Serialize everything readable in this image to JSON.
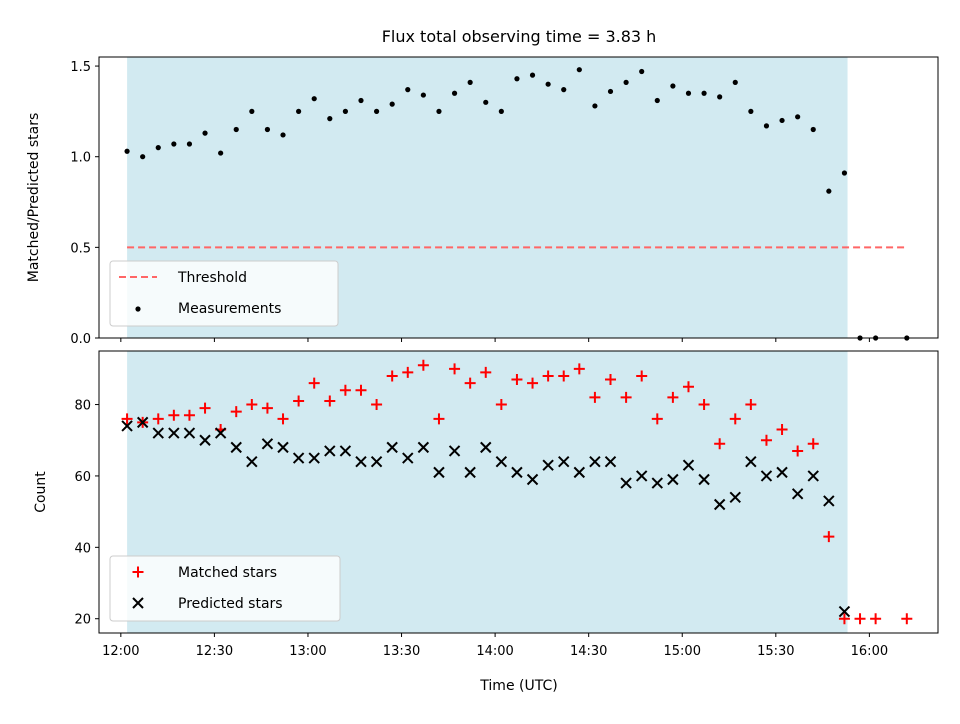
{
  "title": "Flux total observing time = 3.83 h",
  "colors": {
    "shade": "#add8e6",
    "threshold": "#ff6666",
    "measurements": "#000000",
    "matched": "#ff0000",
    "predicted": "#000000"
  },
  "chart_data": [
    {
      "type": "scatter",
      "ylabel": "Matched/Predicted stars",
      "xlabel": "",
      "ylim": [
        0.0,
        1.55
      ],
      "yticks": [
        0.0,
        0.5,
        1.0,
        1.5
      ],
      "ytick_labels": [
        "0.0",
        "0.5",
        "1.0",
        "1.5"
      ],
      "legend_position": "lower-left",
      "shaded_interval": [
        "12:02",
        "15:53"
      ],
      "series": [
        {
          "name": "Threshold",
          "style": "dashed-line",
          "x": [
            "12:02",
            "16:12"
          ],
          "y": [
            0.5,
            0.5
          ]
        },
        {
          "name": "Measurements",
          "style": "dot",
          "x": [
            "12:02",
            "12:07",
            "12:12",
            "12:17",
            "12:22",
            "12:27",
            "12:32",
            "12:37",
            "12:42",
            "12:47",
            "12:52",
            "12:57",
            "13:02",
            "13:07",
            "13:12",
            "13:17",
            "13:22",
            "13:27",
            "13:32",
            "13:37",
            "13:42",
            "13:47",
            "13:52",
            "13:57",
            "14:02",
            "14:07",
            "14:12",
            "14:17",
            "14:22",
            "14:27",
            "14:32",
            "14:37",
            "14:42",
            "14:47",
            "14:52",
            "14:57",
            "15:02",
            "15:07",
            "15:12",
            "15:17",
            "15:22",
            "15:27",
            "15:32",
            "15:37",
            "15:42",
            "15:47",
            "15:52",
            "15:57",
            "16:02",
            "16:12"
          ],
          "y": [
            1.03,
            1.0,
            1.05,
            1.07,
            1.07,
            1.13,
            1.02,
            1.15,
            1.25,
            1.15,
            1.12,
            1.25,
            1.32,
            1.21,
            1.25,
            1.31,
            1.25,
            1.29,
            1.37,
            1.34,
            1.25,
            1.35,
            1.41,
            1.3,
            1.25,
            1.43,
            1.45,
            1.4,
            1.37,
            1.48,
            1.28,
            1.36,
            1.41,
            1.47,
            1.31,
            1.39,
            1.35,
            1.35,
            1.33,
            1.41,
            1.25,
            1.17,
            1.2,
            1.22,
            1.15,
            0.81,
            0.91,
            0.0,
            0.0,
            0.0
          ]
        }
      ]
    },
    {
      "type": "scatter",
      "ylabel": "Count",
      "xlabel": "Time (UTC)",
      "ylim": [
        16,
        95
      ],
      "yticks": [
        20,
        40,
        60,
        80
      ],
      "ytick_labels": [
        "20",
        "40",
        "60",
        "80"
      ],
      "xlim": [
        "11:53",
        "16:22"
      ],
      "xticks": [
        "12:00",
        "12:30",
        "13:00",
        "13:30",
        "14:00",
        "14:30",
        "15:00",
        "15:30",
        "16:00"
      ],
      "xtick_labels": [
        "12:00",
        "12:30",
        "13:00",
        "13:30",
        "14:00",
        "14:30",
        "15:00",
        "15:30",
        "16:00"
      ],
      "legend_position": "lower-left",
      "shaded_interval": [
        "12:02",
        "15:53"
      ],
      "series": [
        {
          "name": "Matched stars",
          "style": "plus",
          "x": [
            "12:02",
            "12:07",
            "12:12",
            "12:17",
            "12:22",
            "12:27",
            "12:32",
            "12:37",
            "12:42",
            "12:47",
            "12:52",
            "12:57",
            "13:02",
            "13:07",
            "13:12",
            "13:17",
            "13:22",
            "13:27",
            "13:32",
            "13:37",
            "13:42",
            "13:47",
            "13:52",
            "13:57",
            "14:02",
            "14:07",
            "14:12",
            "14:17",
            "14:22",
            "14:27",
            "14:32",
            "14:37",
            "14:42",
            "14:47",
            "14:52",
            "14:57",
            "15:02",
            "15:07",
            "15:12",
            "15:17",
            "15:22",
            "15:27",
            "15:32",
            "15:37",
            "15:42",
            "15:47",
            "15:52",
            "15:57",
            "16:02",
            "16:12"
          ],
          "y": [
            76,
            75,
            76,
            77,
            77,
            79,
            73,
            78,
            80,
            79,
            76,
            81,
            86,
            81,
            84,
            84,
            80,
            88,
            89,
            91,
            76,
            90,
            86,
            89,
            80,
            87,
            86,
            88,
            88,
            90,
            82,
            87,
            82,
            88,
            76,
            82,
            85,
            80,
            69,
            76,
            80,
            70,
            73,
            67,
            69,
            43,
            20,
            20,
            20,
            20
          ]
        },
        {
          "name": "Predicted stars",
          "style": "x",
          "x": [
            "12:02",
            "12:07",
            "12:12",
            "12:17",
            "12:22",
            "12:27",
            "12:32",
            "12:37",
            "12:42",
            "12:47",
            "12:52",
            "12:57",
            "13:02",
            "13:07",
            "13:12",
            "13:17",
            "13:22",
            "13:27",
            "13:32",
            "13:37",
            "13:42",
            "13:47",
            "13:52",
            "13:57",
            "14:02",
            "14:07",
            "14:12",
            "14:17",
            "14:22",
            "14:27",
            "14:32",
            "14:37",
            "14:42",
            "14:47",
            "14:52",
            "14:57",
            "15:02",
            "15:07",
            "15:12",
            "15:17",
            "15:22",
            "15:27",
            "15:32",
            "15:37",
            "15:42",
            "15:47",
            "15:52"
          ],
          "y": [
            74,
            75,
            72,
            72,
            72,
            70,
            72,
            68,
            64,
            69,
            68,
            65,
            65,
            67,
            67,
            64,
            64,
            68,
            65,
            68,
            61,
            67,
            61,
            68,
            64,
            61,
            59,
            63,
            64,
            61,
            64,
            64,
            58,
            60,
            58,
            59,
            63,
            59,
            52,
            54,
            64,
            60,
            61,
            55,
            60,
            53,
            22
          ]
        }
      ]
    }
  ]
}
